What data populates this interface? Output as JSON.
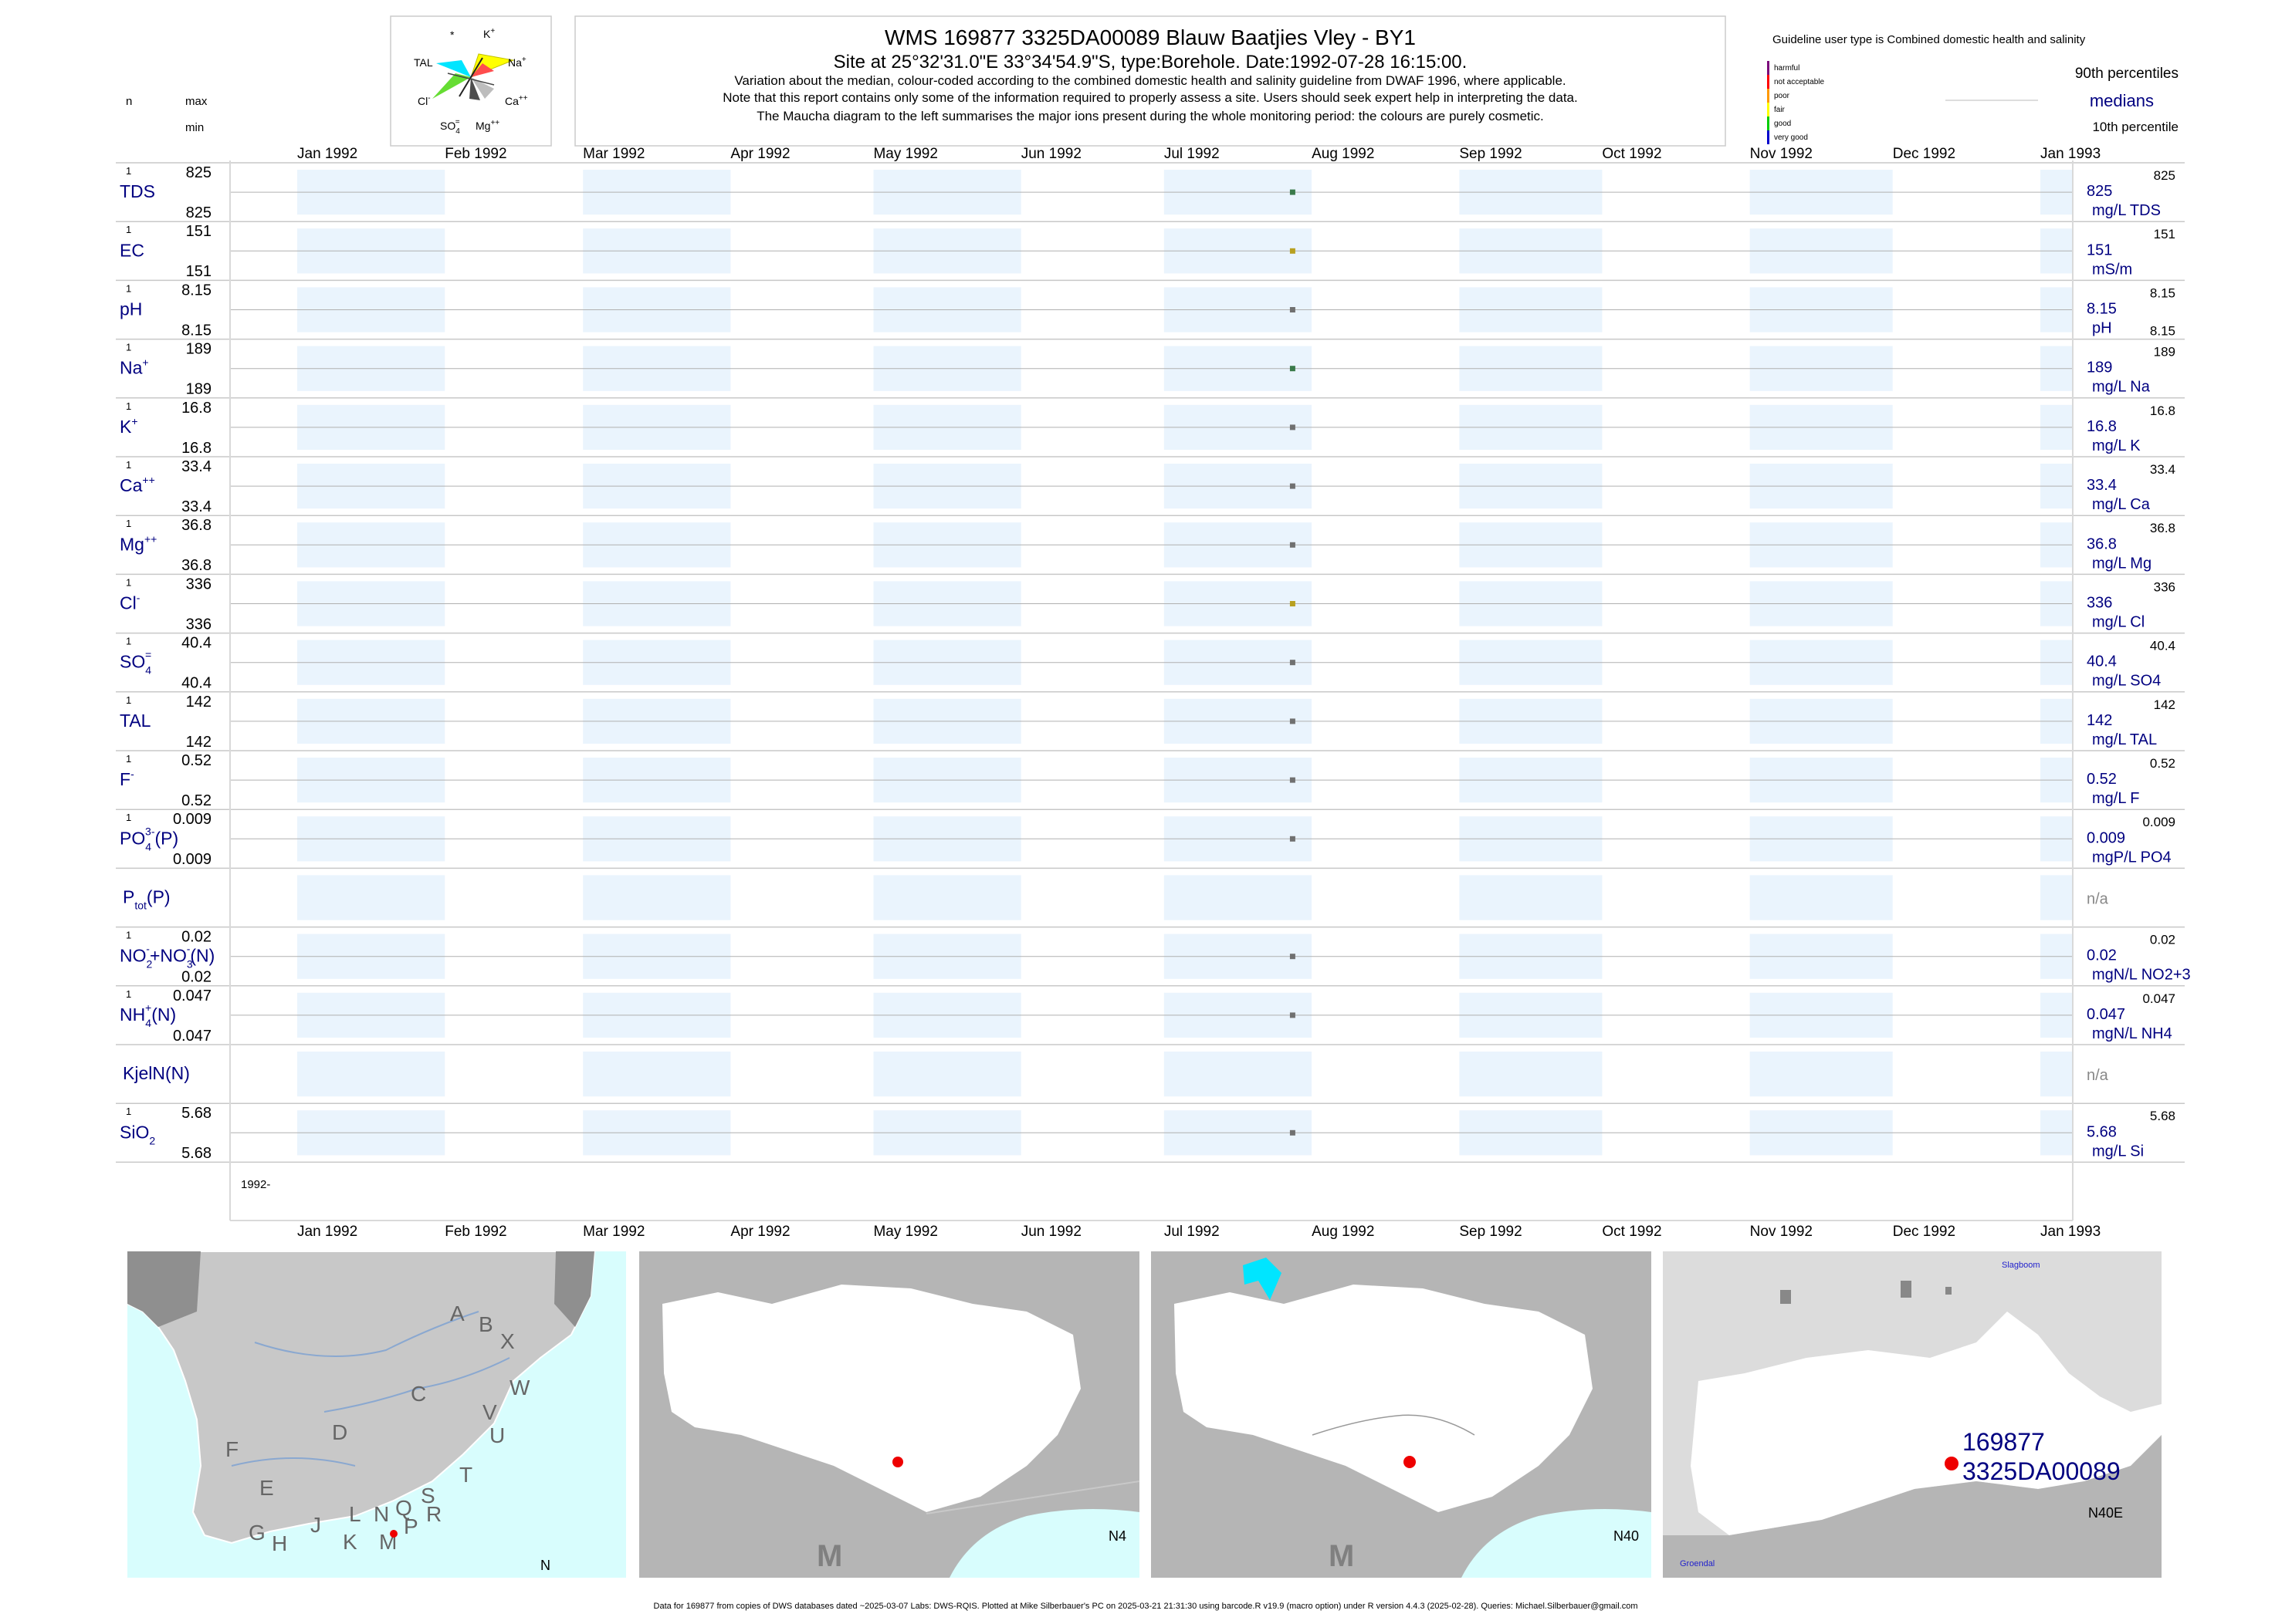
{
  "header": {
    "title": "WMS 169877 3325DA00089 Blauw Baatjies Vley - BY1",
    "subtitle": "Site at 25°32'31.0\"E 33°34'54.9\"S, type:Borehole. Date:1992-07-28 16:15:00.",
    "note1": "Variation about the median,  colour-coded according to the combined domestic health and salinity guideline from DWAF 1996, where applicable.",
    "note2": "Note that this report contains only some of the information required to properly assess a site. Users should seek expert help in interpreting the data.",
    "note3": "The Maucha diagram to the left summarises the major ions present during the whole monitoring period: the colours are purely cosmetic."
  },
  "maucha": {
    "labels": [
      "*",
      "K+",
      "Na+",
      "Ca++",
      "Mg++",
      "SO4=",
      "Cl-",
      "TAL"
    ],
    "colors": {
      "na": "#ffff00",
      "k": "#ff4d4d",
      "ca": "#bdbdbd",
      "mg": "#4d4d4d",
      "so4": "#808080",
      "cl": "#66ff66",
      "tal": "#00e5ff"
    }
  },
  "left_header": {
    "n": "n",
    "max": "max",
    "min": "min"
  },
  "legend": {
    "guideline_title": "Guideline user type is Combined domestic health and salinity",
    "classes": [
      {
        "label": "harmful",
        "color": "#7b0b7b"
      },
      {
        "label": "not acceptable",
        "color": "#ff0000"
      },
      {
        "label": "poor",
        "color": "#ff9900"
      },
      {
        "label": "fair",
        "color": "#ffff00"
      },
      {
        "label": "good",
        "color": "#00cc00"
      },
      {
        "label": "very good",
        "color": "#0000cc"
      }
    ],
    "p90": "90th percentiles",
    "medians": "medians",
    "p10": "10th percentile"
  },
  "footer": {
    "year_label": "1992-",
    "credit": "Data for 169877 from copies of DWS databases dated ~2025-03-07 Labs: DWS-RQIS. Plotted at Mike Silberbauer's PC on 2025-03-21 21:31:30 using barcode.R v19.9 (macro option) under R version 4.4.3 (2025-02-28). Queries: Michael.Silberbauer@gmail.com"
  },
  "maps": {
    "regions": [
      "A",
      "B",
      "X",
      "W",
      "C",
      "V",
      "D",
      "U",
      "F",
      "T",
      "E",
      "L",
      "N",
      "Q",
      "S",
      "R",
      "G",
      "H",
      "J",
      "K",
      "M",
      "P"
    ],
    "map1_label": "N",
    "map2_label": "N4",
    "map2_letter": "M",
    "map3_label": "N40",
    "map3_letter": "M",
    "map4_site": "169877",
    "map4_code": "3325DA00089",
    "map4_label": "N40E",
    "map4_place1": "Slagboom",
    "map4_place2": "Groendal"
  },
  "chart_data": {
    "type": "scatter",
    "x_axis": {
      "type": "date",
      "range": [
        "1992-01-01",
        "1993-01-01"
      ],
      "ticks": [
        "Jan 1992",
        "Feb 1992",
        "Mar 1992",
        "Apr 1992",
        "May 1992",
        "Jun 1992",
        "Jul 1992",
        "Aug 1992",
        "Sep 1992",
        "Oct 1992",
        "Nov 1992",
        "Dec 1992",
        "Jan 1993"
      ],
      "shaded_months": [
        "Jan 1992",
        "Mar 1992",
        "May 1992",
        "Jul 1992",
        "Sep 1992",
        "Nov 1992",
        "Jan 1993"
      ]
    },
    "sample_date": "1992-07-28",
    "series": [
      {
        "name": "TDS",
        "html": "TDS",
        "n": "1",
        "max": "825",
        "min": "825",
        "median": "825",
        "p90": "825",
        "p10": "",
        "unit": "mg/L TDS",
        "value": 825,
        "class": "good"
      },
      {
        "name": "EC",
        "html": "EC",
        "n": "1",
        "max": "151",
        "min": "151",
        "median": "151",
        "p90": "151",
        "p10": "",
        "unit": "mS/m",
        "value": 151,
        "class": "fair"
      },
      {
        "name": "pH",
        "html": "pH",
        "n": "1",
        "max": "8.15",
        "min": "8.15",
        "median": "8.15",
        "p90": "8.15",
        "p10": "8.15",
        "unit": "pH",
        "value": 8.15,
        "class": "none"
      },
      {
        "name": "Na+",
        "html": "Na<tspan dy=\"-10\" font-size=\"14\">+</tspan>",
        "n": "1",
        "max": "189",
        "min": "189",
        "median": "189",
        "p90": "189",
        "p10": "",
        "unit": "mg/L Na",
        "value": 189,
        "class": "good"
      },
      {
        "name": "K+",
        "html": "K<tspan dy=\"-10\" font-size=\"14\">+</tspan>",
        "n": "1",
        "max": "16.8",
        "min": "16.8",
        "median": "16.8",
        "p90": "16.8",
        "p10": "",
        "unit": "mg/L K",
        "value": 16.8,
        "class": "none"
      },
      {
        "name": "Ca++",
        "html": "Ca<tspan dy=\"-10\" font-size=\"14\">++</tspan>",
        "n": "1",
        "max": "33.4",
        "min": "33.4",
        "median": "33.4",
        "p90": "33.4",
        "p10": "",
        "unit": "mg/L Ca",
        "value": 33.4,
        "class": "none"
      },
      {
        "name": "Mg++",
        "html": "Mg<tspan dy=\"-10\" font-size=\"14\">++</tspan>",
        "n": "1",
        "max": "36.8",
        "min": "36.8",
        "median": "36.8",
        "p90": "36.8",
        "p10": "",
        "unit": "mg/L Mg",
        "value": 36.8,
        "class": "none"
      },
      {
        "name": "Cl-",
        "html": "Cl<tspan dy=\"-10\" font-size=\"14\">-</tspan>",
        "n": "1",
        "max": "336",
        "min": "336",
        "median": "336",
        "p90": "336",
        "p10": "",
        "unit": "mg/L Cl",
        "value": 336,
        "class": "fair"
      },
      {
        "name": "SO4=",
        "html": "SO<tspan dy=\"8\" font-size=\"14\">4</tspan><tspan dy=\"-20\" dx=\"-8\" font-size=\"14\">=</tspan>",
        "n": "1",
        "max": "40.4",
        "min": "40.4",
        "median": "40.4",
        "p90": "40.4",
        "p10": "",
        "unit": "mg/L SO4",
        "value": 40.4,
        "class": "none"
      },
      {
        "name": "TAL",
        "html": "TAL",
        "n": "1",
        "max": "142",
        "min": "142",
        "median": "142",
        "p90": "142",
        "p10": "",
        "unit": "mg/L TAL",
        "value": 142,
        "class": "none"
      },
      {
        "name": "F-",
        "html": "F<tspan dy=\"-10\" font-size=\"14\">-</tspan>",
        "n": "1",
        "max": "0.52",
        "min": "0.52",
        "median": "0.52",
        "p90": "0.52",
        "p10": "",
        "unit": "mg/L F",
        "value": 0.52,
        "class": "none"
      },
      {
        "name": "PO4(P)",
        "html": "PO<tspan dy=\"8\" font-size=\"14\">4</tspan><tspan dy=\"-20\" dx=\"-8\" font-size=\"14\">3-</tspan><tspan dy=\"12\">(P)</tspan>",
        "n": "1",
        "max": "0.009",
        "min": "0.009",
        "median": "0.009",
        "p90": "0.009",
        "p10": "",
        "unit": "mgP/L PO4",
        "value": 0.009,
        "class": "none"
      },
      {
        "name": "Ptot(P)",
        "html": "P<tspan dy=\"8\" font-size=\"14\">tot</tspan><tspan dy=\"-8\">(P)</tspan>",
        "n": "",
        "max": "",
        "min": "",
        "median": "n/a",
        "p90": "",
        "p10": "",
        "unit": "",
        "value": null,
        "class": "none"
      },
      {
        "name": "NO2+NO3(N)",
        "html": "NO<tspan dy=\"8\" font-size=\"14\">2</tspan><tspan dy=\"-20\" dx=\"-8\" font-size=\"14\">-</tspan><tspan dy=\"12\">+NO</tspan><tspan dy=\"8\" font-size=\"14\">3</tspan><tspan dy=\"-20\" dx=\"-8\" font-size=\"14\">-</tspan><tspan dy=\"12\">(N)</tspan>",
        "n": "1",
        "max": "0.02",
        "min": "0.02",
        "median": "0.02",
        "p90": "0.02",
        "p10": "",
        "unit": "mgN/L NO2+3",
        "value": 0.02,
        "class": "none"
      },
      {
        "name": "NH4+(N)",
        "html": "NH<tspan dy=\"8\" font-size=\"14\">4</tspan><tspan dy=\"-20\" dx=\"-8\" font-size=\"14\">+</tspan><tspan dy=\"12\">(N)</tspan>",
        "n": "1",
        "max": "0.047",
        "min": "0.047",
        "median": "0.047",
        "p90": "0.047",
        "p10": "",
        "unit": "mgN/L NH4",
        "value": 0.047,
        "class": "none"
      },
      {
        "name": "KjelN(N)",
        "html": "KjelN(N)",
        "n": "",
        "max": "",
        "min": "",
        "median": "n/a",
        "p90": "",
        "p10": "",
        "unit": "",
        "value": null,
        "class": "none"
      },
      {
        "name": "SiO2",
        "html": "SiO<tspan dy=\"8\" font-size=\"14\">2</tspan>",
        "n": "1",
        "max": "5.68",
        "min": "5.68",
        "median": "5.68",
        "p90": "5.68",
        "p10": "",
        "unit": "mg/L Si",
        "value": 5.68,
        "class": "none"
      }
    ]
  }
}
